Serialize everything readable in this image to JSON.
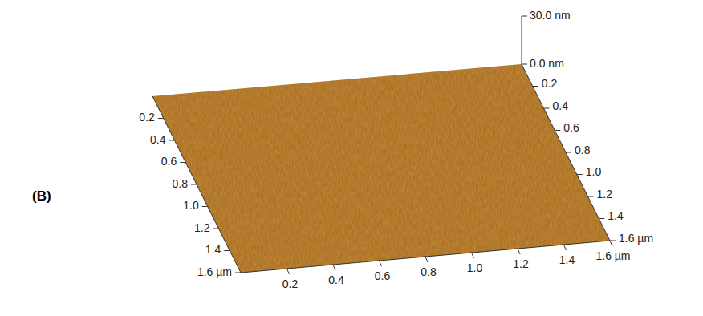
{
  "chart_data": {
    "type": "surface3d",
    "panel_label": "(B)",
    "color": "#a8660e",
    "xlim": [
      0,
      1.6
    ],
    "xticks": [
      0.2,
      0.4,
      0.6,
      0.8,
      {
        "value": 1,
        "label": "1.0"
      },
      1.2,
      1.4,
      {
        "value": 1.6,
        "label": "1.6 µm"
      }
    ],
    "ylim": [
      0,
      1.6
    ],
    "yticks": [
      0.2,
      0.4,
      0.6,
      0.8,
      {
        "value": 1,
        "label": "1.0"
      },
      1.2,
      1.4,
      {
        "value": 1.6,
        "label": "1.6 µm"
      }
    ],
    "zlim": [
      0,
      30
    ],
    "zticks": [
      {
        "value": 0,
        "label": "0.0 nm"
      },
      {
        "value": 30,
        "label": "30.0 nm"
      }
    ],
    "grid": false
  }
}
